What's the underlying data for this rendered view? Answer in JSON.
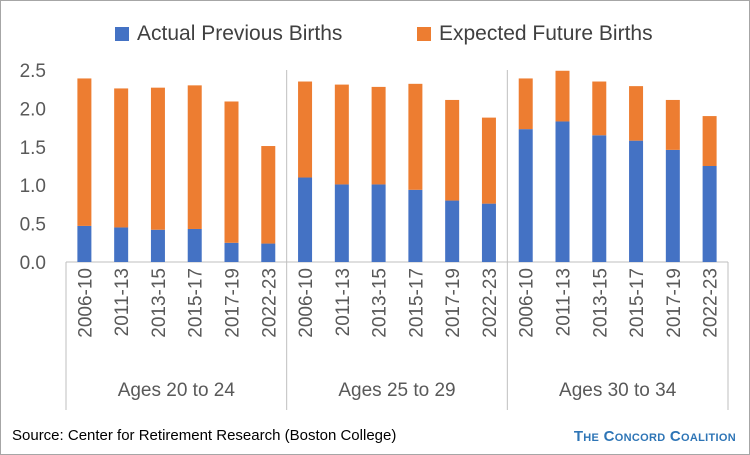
{
  "legend": {
    "actual_label": "Actual Previous Births",
    "expected_label": "Expected Future Births"
  },
  "footer": {
    "source": "Source: Center for Retirement Research (Boston College)",
    "brand": "The Concord Coalition"
  },
  "colors": {
    "actual": "#4472c4",
    "expected": "#ed7d31",
    "axis_text": "#595959",
    "grid_lines": "#bfbfbf"
  },
  "chart_data": {
    "type": "bar",
    "stacked": true,
    "ylim": [
      0,
      2.5
    ],
    "yticks": [
      "0.0",
      "0.5",
      "1.0",
      "1.5",
      "2.0",
      "2.5"
    ],
    "ytick_values": [
      0,
      0.5,
      1.0,
      1.5,
      2.0,
      2.5
    ],
    "grid": false,
    "legend_position": "top",
    "categories": [
      "2006-10",
      "2011-13",
      "2013-15",
      "2015-17",
      "2017-19",
      "2022-23"
    ],
    "groups": [
      {
        "label": "Ages 20 to 24",
        "actual": [
          0.47,
          0.45,
          0.42,
          0.43,
          0.25,
          0.24
        ],
        "expected": [
          1.92,
          1.81,
          1.85,
          1.87,
          1.84,
          1.27
        ]
      },
      {
        "label": "Ages 25 to 29",
        "actual": [
          1.1,
          1.01,
          1.01,
          0.94,
          0.8,
          0.76
        ],
        "expected": [
          1.25,
          1.3,
          1.27,
          1.38,
          1.31,
          1.12
        ]
      },
      {
        "label": "Ages 30 to 34",
        "actual": [
          1.73,
          1.83,
          1.65,
          1.58,
          1.46,
          1.25
        ],
        "expected": [
          0.66,
          0.66,
          0.7,
          0.71,
          0.65,
          0.65
        ]
      }
    ],
    "series": [
      {
        "name": "Actual Previous Births",
        "key": "actual"
      },
      {
        "name": "Expected Future Births",
        "key": "expected"
      }
    ]
  }
}
